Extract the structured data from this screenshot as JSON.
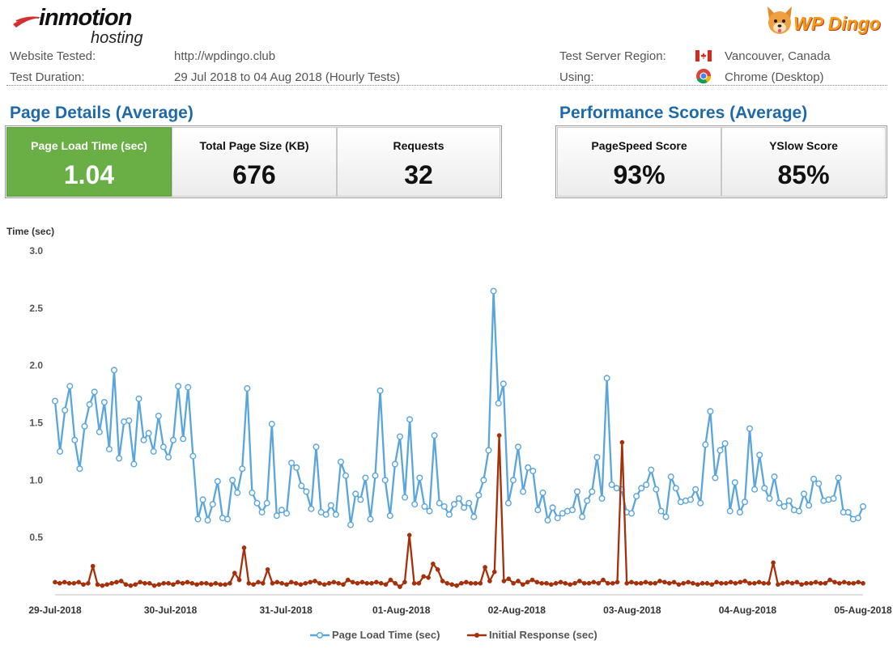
{
  "header": {
    "logo_left": {
      "line1": "inmotion",
      "line2": "hosting"
    },
    "logo_right": {
      "text": "WP Dingo"
    },
    "website_tested_label": "Website Tested:",
    "website_tested_value": "http://wpdingo.club",
    "test_duration_label": "Test Duration:",
    "test_duration_value": "29 Jul 2018 to 04 Aug 2018 (Hourly Tests)",
    "region_label": "Test Server Region:",
    "region_value": "Vancouver, Canada",
    "region_icon": "canada-flag-icon",
    "using_label": "Using:",
    "using_value": "Chrome (Desktop)",
    "using_icon": "chrome-icon"
  },
  "page_details": {
    "title": "Page Details (Average)",
    "cards": [
      {
        "label": "Page Load Time (sec)",
        "value": "1.04"
      },
      {
        "label": "Total Page Size (KB)",
        "value": "676"
      },
      {
        "label": "Requests",
        "value": "32"
      }
    ]
  },
  "performance": {
    "title": "Performance Scores (Average)",
    "cards": [
      {
        "label": "PageSpeed Score",
        "value": "93%"
      },
      {
        "label": "YSlow Score",
        "value": "85%"
      }
    ]
  },
  "colors": {
    "series1": "#5aa6dc",
    "series2": "#a5310c",
    "accent": "#1e6aa8",
    "green": "#6aaf45"
  },
  "chart_data": {
    "type": "line",
    "ylabel": "Time (sec)",
    "ylim": [
      0,
      3.0
    ],
    "yticks": [
      "3.0",
      "2.5",
      "2.0",
      "1.5",
      "1.0",
      "0.5"
    ],
    "ytick_values": [
      3.0,
      2.5,
      2.0,
      1.5,
      1.0,
      0.5
    ],
    "xlabels": [
      "29-Jul-2018",
      "30-Jul-2018",
      "31-Jul-2018",
      "01-Aug-2018",
      "02-Aug-2018",
      "03-Aug-2018",
      "04-Aug-2018",
      "05-Aug-2018"
    ],
    "x_start": "2018-07-29",
    "x_end": "2018-08-05",
    "legend_position": "bottom",
    "grid": false,
    "series": [
      {
        "name": "Page Load Time (sec)",
        "values": [
          1.69,
          1.25,
          1.61,
          1.82,
          1.35,
          1.1,
          1.47,
          1.66,
          1.77,
          1.42,
          1.68,
          1.27,
          1.96,
          1.19,
          1.51,
          1.52,
          1.14,
          1.71,
          1.35,
          1.41,
          1.25,
          1.56,
          1.29,
          1.2,
          1.35,
          1.82,
          1.36,
          1.81,
          1.21,
          0.66,
          0.83,
          0.65,
          0.79,
          0.99,
          0.67,
          0.66,
          1.0,
          0.89,
          1.1,
          1.8,
          0.89,
          0.8,
          0.72,
          0.8,
          1.49,
          0.69,
          0.74,
          0.71,
          1.15,
          1.11,
          0.95,
          0.9,
          0.75,
          1.29,
          0.72,
          0.7,
          0.78,
          0.7,
          1.16,
          1.04,
          0.61,
          0.88,
          0.83,
          1.02,
          0.66,
          1.04,
          1.78,
          1.0,
          0.69,
          1.14,
          1.38,
          0.85,
          1.53,
          0.79,
          1.02,
          0.77,
          0.73,
          1.39,
          0.8,
          0.77,
          0.7,
          0.79,
          0.84,
          0.76,
          0.8,
          0.68,
          0.87,
          1.0,
          1.26,
          2.65,
          1.67,
          1.84,
          0.8,
          1.0,
          1.29,
          0.9,
          1.11,
          1.08,
          0.74,
          0.89,
          0.65,
          0.76,
          0.67,
          0.71,
          0.73,
          0.74,
          0.9,
          0.68,
          0.82,
          0.9,
          1.2,
          0.84,
          1.89,
          0.96,
          0.93,
          0.92,
          0.72,
          0.71,
          0.86,
          0.93,
          0.96,
          1.09,
          0.92,
          0.73,
          0.68,
          1.03,
          0.93,
          0.81,
          0.82,
          0.83,
          0.92,
          0.8,
          1.31,
          1.6,
          1.02,
          1.26,
          1.32,
          0.73,
          0.98,
          0.72,
          0.81,
          1.45,
          0.92,
          1.22,
          0.93,
          0.84,
          1.03,
          0.8,
          0.77,
          0.82,
          0.74,
          0.73,
          0.88,
          0.78,
          1.01,
          0.97,
          0.82,
          0.83,
          0.84,
          1.02,
          0.72,
          0.72,
          0.66,
          0.67,
          0.77
        ]
      },
      {
        "name": "Initial Response (sec)",
        "values": [
          0.11,
          0.1,
          0.11,
          0.1,
          0.1,
          0.11,
          0.09,
          0.1,
          0.25,
          0.09,
          0.08,
          0.09,
          0.1,
          0.11,
          0.12,
          0.09,
          0.08,
          0.09,
          0.11,
          0.1,
          0.1,
          0.08,
          0.09,
          0.1,
          0.1,
          0.09,
          0.11,
          0.1,
          0.11,
          0.1,
          0.09,
          0.1,
          0.1,
          0.09,
          0.1,
          0.09,
          0.09,
          0.1,
          0.19,
          0.13,
          0.41,
          0.1,
          0.09,
          0.11,
          0.1,
          0.22,
          0.1,
          0.11,
          0.1,
          0.09,
          0.11,
          0.1,
          0.09,
          0.1,
          0.11,
          0.12,
          0.1,
          0.09,
          0.1,
          0.11,
          0.1,
          0.09,
          0.13,
          0.11,
          0.1,
          0.11,
          0.1,
          0.1,
          0.11,
          0.1,
          0.09,
          0.13,
          0.1,
          0.07,
          0.11,
          0.52,
          0.1,
          0.1,
          0.16,
          0.15,
          0.27,
          0.22,
          0.12,
          0.1,
          0.09,
          0.08,
          0.1,
          0.11,
          0.1,
          0.1,
          0.1,
          0.24,
          0.12,
          0.2,
          1.39,
          0.12,
          0.14,
          0.1,
          0.12,
          0.09,
          0.11,
          0.13,
          0.11,
          0.1,
          0.1,
          0.09,
          0.1,
          0.11,
          0.1,
          0.09,
          0.1,
          0.12,
          0.1,
          0.1,
          0.11,
          0.1,
          0.13,
          0.1,
          0.1,
          0.11,
          1.33,
          0.1,
          0.11,
          0.1,
          0.1,
          0.11,
          0.1,
          0.1,
          0.12,
          0.11,
          0.1,
          0.11,
          0.09,
          0.1,
          0.11,
          0.1,
          0.09,
          0.1,
          0.1,
          0.09,
          0.11,
          0.1,
          0.1,
          0.11,
          0.1,
          0.11,
          0.12,
          0.1,
          0.1,
          0.11,
          0.1,
          0.1,
          0.28,
          0.09,
          0.1,
          0.11,
          0.1,
          0.11,
          0.09,
          0.1,
          0.1,
          0.11,
          0.1,
          0.1,
          0.13,
          0.11,
          0.1,
          0.11,
          0.1,
          0.1,
          0.11,
          0.1
        ]
      }
    ]
  }
}
